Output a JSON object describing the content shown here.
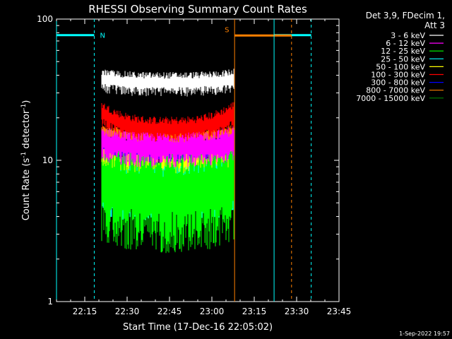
{
  "chart_data": {
    "type": "line",
    "title": "RHESSI Observing Summary Count Rates",
    "xlabel": "Start Time (17-Dec-16 22:05:02)",
    "ylabel_main": "Count Rate (s",
    "ylabel_sup1": "-1",
    "ylabel_mid": " detector",
    "ylabel_sup2": "-1",
    "ylabel_end": ")",
    "yscale": "log",
    "ylim": [
      1,
      100
    ],
    "xlim": [
      22.0833,
      23.75
    ],
    "x_ticks": [
      {
        "value": 22.25,
        "label": "22:15"
      },
      {
        "value": 22.5,
        "label": "22:30"
      },
      {
        "value": 22.75,
        "label": "22:45"
      },
      {
        "value": 23.0,
        "label": "23:00"
      },
      {
        "value": 23.25,
        "label": "23:15"
      },
      {
        "value": 23.5,
        "label": "23:30"
      },
      {
        "value": 23.75,
        "label": "23:45"
      }
    ],
    "y_ticks": [
      {
        "value": 1,
        "label": "1"
      },
      {
        "value": 10,
        "label": "10"
      },
      {
        "value": 100,
        "label": "100"
      }
    ],
    "legend_header": [
      "Det 3,9, FDecim 1,",
      "Att 3"
    ],
    "legend_position": "right",
    "series": [
      {
        "name": "3 - 6 keV",
        "color": "#ffffff",
        "x_start": 22.35,
        "x_end": 23.13,
        "level": 36,
        "spread": 0.07,
        "edge_level": 38
      },
      {
        "name": "6 - 12 keV",
        "color": "#ff00ff",
        "x_start": 22.35,
        "x_end": 23.13,
        "level": 12.5,
        "spread": 0.1,
        "edge_level": 14
      },
      {
        "name": "12 - 25 keV",
        "color": "#00ff00",
        "x_start": 22.35,
        "x_end": 23.13,
        "level": 6.2,
        "spread": 0.3,
        "edge_level": 7.5
      },
      {
        "name": "25 - 50 keV",
        "color": "#00ffff",
        "x_start": 22.35,
        "x_end": 23.13,
        "level": 6.3,
        "spread": 0.16,
        "edge_level": 7.2
      },
      {
        "name": "50 - 100 keV",
        "color": "#ffff00",
        "x_start": 22.35,
        "x_end": 23.13,
        "level": 8.8,
        "spread": 0.12,
        "edge_level": 9.5
      },
      {
        "name": "100 - 300 keV",
        "color": "#ff0000",
        "x_start": 22.35,
        "x_end": 23.13,
        "level": 17,
        "spread": 0.08,
        "edge_level": 22
      },
      {
        "name": "300 - 800 keV",
        "color": "#0000ff",
        "x_start": 22.35,
        "x_end": 23.13,
        "level": 11.5,
        "spread": 0.08,
        "edge_level": 13
      },
      {
        "name": "800 - 7000 keV",
        "color": "#ff8000",
        "x_start": 22.35,
        "x_end": 23.13,
        "level": 15,
        "spread": 0.05,
        "edge_level": 16
      },
      {
        "name": "7000 - 15000 keV",
        "color": "#008000",
        "x_start": 22.35,
        "x_end": 23.13,
        "level": 8.5,
        "spread": 0.05,
        "edge_level": 9
      }
    ],
    "annotations": {
      "night_label": "N",
      "saa_label": "S",
      "night_color": "#00ffff",
      "saa_color": "#ff8000",
      "night_bars": [
        [
          22.0833,
          22.306
        ],
        [
          23.367,
          23.586
        ]
      ],
      "saa_bars": [
        [
          23.134,
          23.47
        ]
      ],
      "night_lines": [
        {
          "x": 22.0833,
          "style": "solid"
        },
        {
          "x": 22.306,
          "style": "dashed"
        },
        {
          "x": 23.367,
          "style": "solid"
        },
        {
          "x": 23.586,
          "style": "dashed"
        }
      ],
      "saa_lines": [
        {
          "x": 23.134,
          "style": "solid"
        },
        {
          "x": 23.47,
          "style": "dashed"
        }
      ],
      "bar_level": 77
    }
  },
  "footer": {
    "date_stamp": "1-Sep-2022 19:57"
  }
}
